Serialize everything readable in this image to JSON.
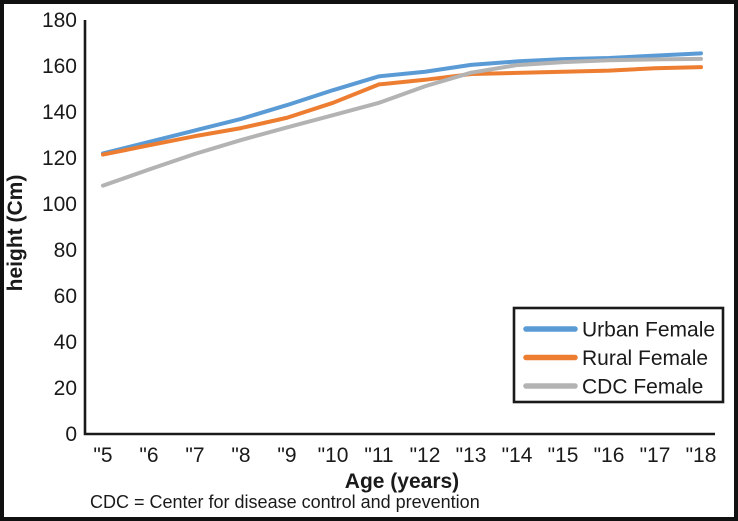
{
  "chart_data": {
    "type": "line",
    "title": "",
    "xlabel": "Age (years)",
    "ylabel": "height (Cm)",
    "x": [
      5,
      6,
      7,
      8,
      9,
      10,
      11,
      12,
      13,
      14,
      15,
      16,
      17,
      18
    ],
    "x_tick_labels": [
      "\"5",
      "\"6",
      "\"7",
      "\"8",
      "\"9",
      "\"10",
      "\"11",
      "\"12",
      "\"13",
      "\"14",
      "\"15",
      "\"16",
      "\"17",
      "\"18"
    ],
    "y_ticks": [
      0,
      20,
      40,
      60,
      80,
      100,
      120,
      140,
      160,
      180
    ],
    "ylim": [
      0,
      180
    ],
    "grid": false,
    "legend_position": "bottom-right",
    "series": [
      {
        "name": "Urban Female",
        "color": "#5B9BD5",
        "values": [
          122,
          127,
          132,
          137,
          143,
          149.5,
          155.5,
          157.5,
          160.5,
          162,
          163,
          163.5,
          164.5,
          165.5
        ]
      },
      {
        "name": "Rural Female",
        "color": "#ED7D31",
        "values": [
          121.5,
          125.5,
          129.5,
          133,
          137.5,
          144,
          152,
          154,
          156.5,
          157,
          157.5,
          158,
          159,
          159.5
        ]
      },
      {
        "name": "CDC Female",
        "color": "#B3B3B3",
        "values": [
          108,
          115,
          121.8,
          127.8,
          133.3,
          138.6,
          144,
          151.2,
          157.1,
          160.4,
          161.7,
          162.5,
          162.9,
          163.1
        ]
      }
    ]
  },
  "footnote": "CDC = Center for disease control and prevention",
  "colors": {
    "axis": "#1a1a1a",
    "frame_border": "#111111",
    "background": "#ffffff"
  }
}
